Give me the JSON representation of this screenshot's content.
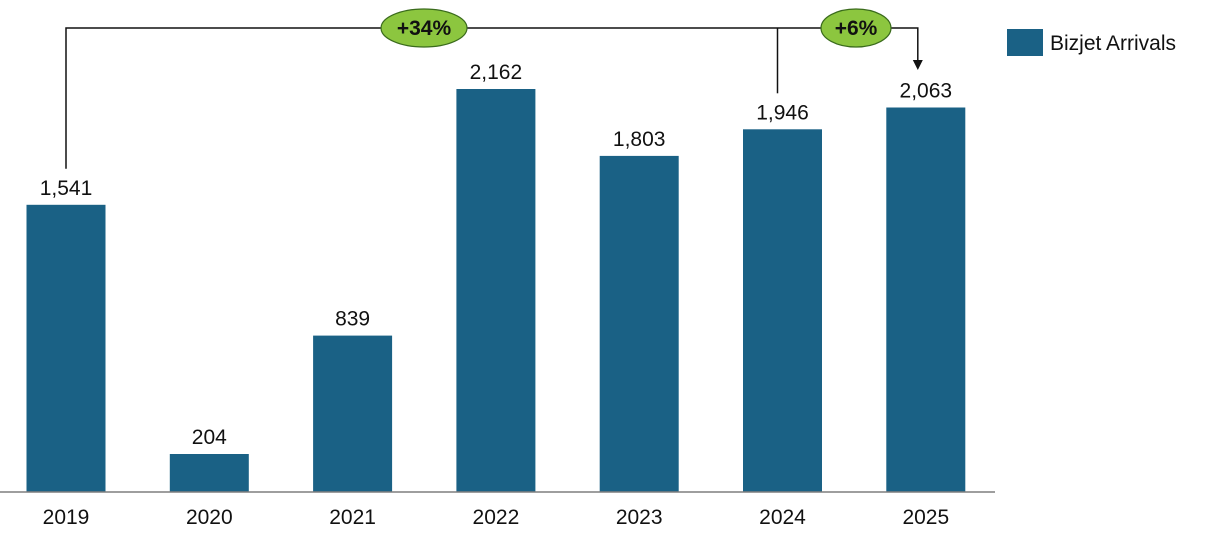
{
  "chart_data": {
    "type": "bar",
    "categories": [
      "2019",
      "2020",
      "2021",
      "2022",
      "2023",
      "2024",
      "2025"
    ],
    "series": [
      {
        "name": "Bizjet Arrivals",
        "values": [
          1541,
          204,
          839,
          2162,
          1803,
          1946,
          2063
        ],
        "color": "#1a6185"
      }
    ],
    "data_labels": [
      "1,541",
      "204",
      "839",
      "2,162",
      "1,803",
      "1,946",
      "2,063"
    ],
    "title": "",
    "xlabel": "",
    "ylabel": "",
    "ylim": [
      0,
      2162
    ],
    "grid": false,
    "legend": {
      "position": "top-right",
      "label": "Bizjet Arrivals"
    },
    "annotations": [
      {
        "text": "+34%",
        "from": "2019",
        "to": "2025",
        "color": "#8cc63f"
      },
      {
        "text": "+6%",
        "from": "2024",
        "to": "2025",
        "color": "#8cc63f"
      }
    ]
  }
}
